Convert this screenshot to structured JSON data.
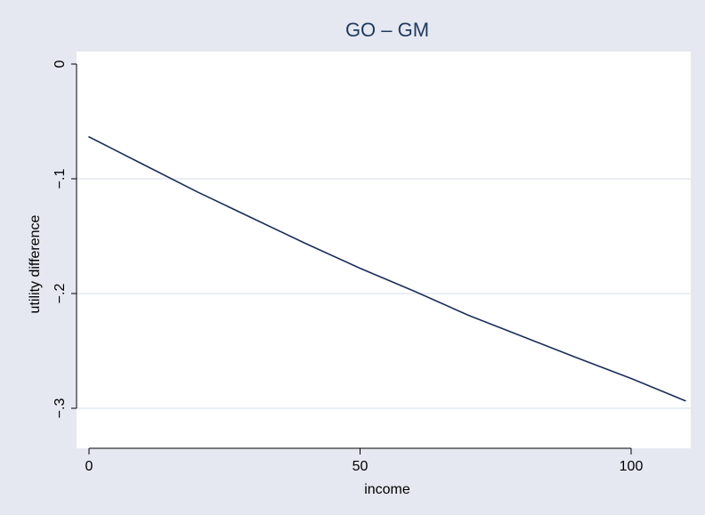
{
  "chart_data": {
    "type": "line",
    "title": "GO – GM",
    "xlabel": "income",
    "ylabel": "utility difference",
    "xlim": [
      0,
      110
    ],
    "ylim": [
      -0.3,
      0
    ],
    "x_ticks": [
      0,
      50,
      100
    ],
    "x_tick_labels": [
      "0",
      "50",
      "100"
    ],
    "y_ticks": [
      0,
      -0.1,
      -0.2,
      -0.3
    ],
    "y_tick_labels": [
      "0",
      "−.1",
      "−.2",
      "−.3"
    ],
    "grid": "horizontal",
    "series": [
      {
        "color": "#1a2e5a",
        "x": [
          0,
          10,
          20,
          30,
          40,
          50,
          60,
          70,
          80,
          90,
          100,
          110
        ],
        "y": [
          -0.0635,
          -0.0875,
          -0.1115,
          -0.134,
          -0.1565,
          -0.178,
          -0.198,
          -0.219,
          -0.2375,
          -0.256,
          -0.274,
          -0.2935
        ]
      }
    ],
    "colors": {
      "outer_background": "#e5e8f1",
      "plot_background": "#ffffff",
      "gridline": "#e4e8f1",
      "line": "#1a2e5a",
      "title": "#1f3a5f"
    }
  }
}
